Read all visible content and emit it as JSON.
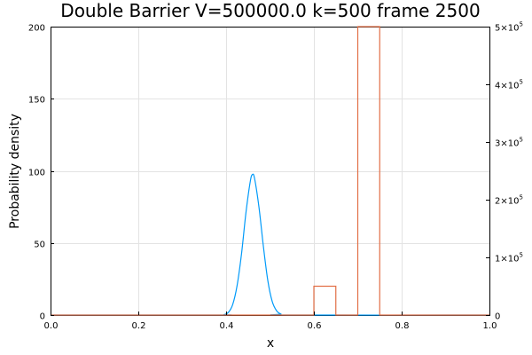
{
  "chart_data": {
    "type": "line",
    "title": "Double Barrier V=500000.0 k=500 frame 2500",
    "xlabel": "x",
    "ylabel": "Probability density",
    "xlim": [
      0.0,
      1.0
    ],
    "ylim": [
      0,
      200
    ],
    "y2lim": [
      0,
      500000
    ],
    "grid": true,
    "legend": "none",
    "x_ticks": [
      "0.0",
      "0.2",
      "0.4",
      "0.6",
      "0.8",
      "1.0"
    ],
    "y_ticks": [
      "0",
      "50",
      "100",
      "150",
      "200"
    ],
    "y2_ticks": [
      {
        "base": "0",
        "exp": ""
      },
      {
        "base": "1×10",
        "exp": "5"
      },
      {
        "base": "2×10",
        "exp": "5"
      },
      {
        "base": "3×10",
        "exp": "5"
      },
      {
        "base": "4×10",
        "exp": "5"
      },
      {
        "base": "5×10",
        "exp": "5"
      }
    ],
    "series": [
      {
        "color": "#009af9",
        "axis": "left",
        "x": [
          0.0,
          0.38,
          0.395,
          0.405,
          0.415,
          0.425,
          0.435,
          0.445,
          0.455,
          0.46,
          0.465,
          0.475,
          0.485,
          0.495,
          0.505,
          0.515,
          0.525,
          0.54,
          1.0
        ],
        "y": [
          0,
          0,
          0.3,
          1.8,
          7.3,
          20.4,
          42.1,
          70.4,
          92.5,
          97.5,
          94.5,
          74.5,
          47.5,
          24,
          9.5,
          3.0,
          0.7,
          0,
          0
        ]
      },
      {
        "color": "#e26f46",
        "axis": "right",
        "x": [
          0.0,
          0.6,
          0.6,
          0.65,
          0.65,
          0.7,
          0.7,
          0.75,
          0.75,
          1.0
        ],
        "y": [
          0,
          0,
          50000,
          50000,
          0,
          0,
          500000,
          500000,
          0,
          0
        ]
      }
    ]
  }
}
